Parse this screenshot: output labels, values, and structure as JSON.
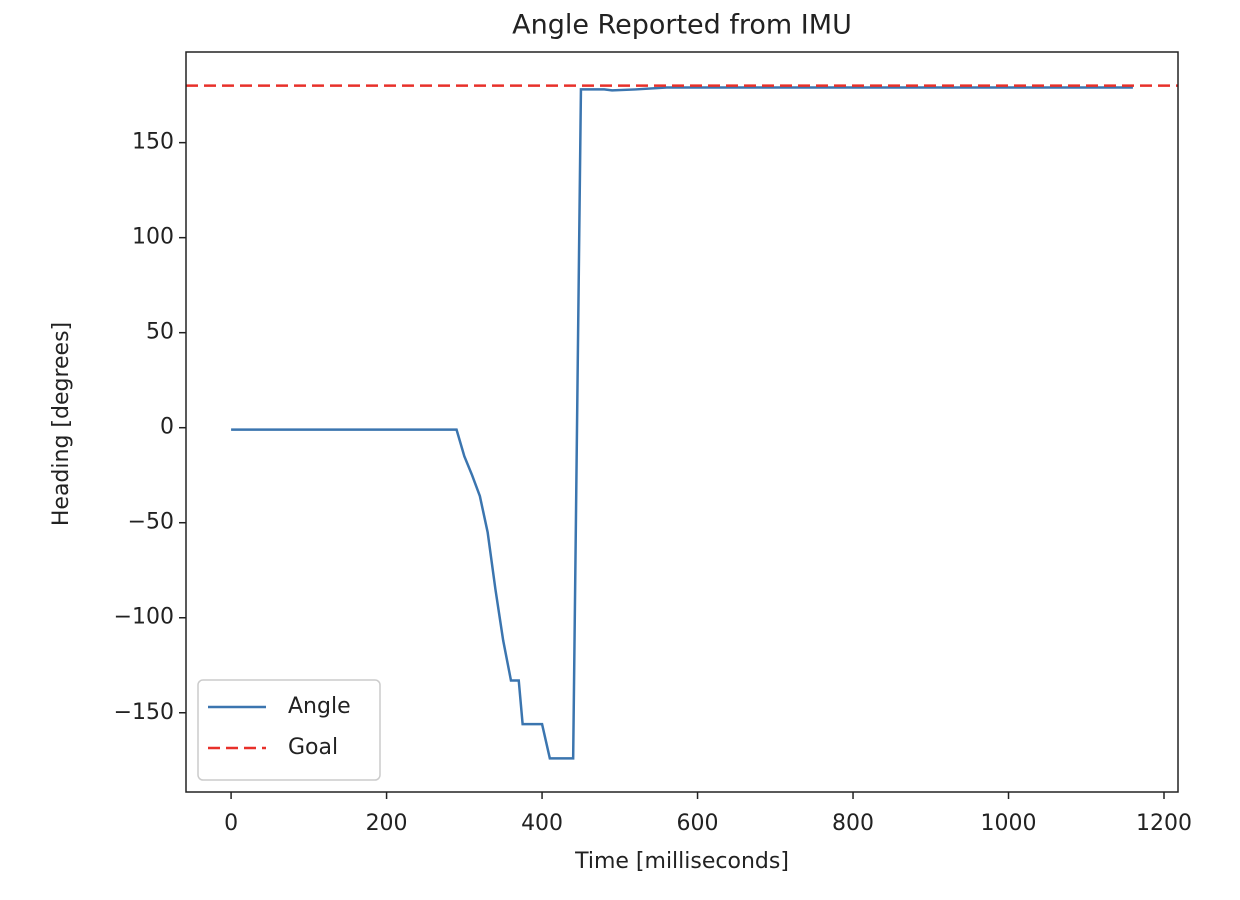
{
  "chart_data": {
    "type": "line",
    "title": "Angle Reported from IMU",
    "x_label": "Time [milliseconds]",
    "y_label": "Heading [degrees]",
    "xlim": [
      -58,
      1218
    ],
    "ylim": [
      -191.7,
      197.7
    ],
    "xticks": [
      0,
      200,
      400,
      600,
      800,
      1000,
      1200
    ],
    "yticks": [
      {
        "value": -150,
        "label": "−150"
      },
      {
        "value": -100,
        "label": "−100"
      },
      {
        "value": -50,
        "label": "−50"
      },
      0,
      50,
      100,
      150
    ],
    "legend": "lower left",
    "series": [
      {
        "name": "Angle",
        "color": "#3b75af",
        "linestyle": "solid",
        "x": [
          0,
          290,
          300,
          310,
          320,
          330,
          340,
          350,
          360,
          370,
          375,
          400,
          410,
          440,
          450,
          480,
          490,
          520,
          560,
          1160
        ],
        "values": [
          -1,
          -1,
          -15,
          -25,
          -36,
          -55,
          -85,
          -112,
          -133,
          -133,
          -156,
          -156,
          -174,
          -174,
          178,
          178,
          177.5,
          178,
          179,
          179
        ]
      },
      {
        "name": "Goal",
        "color": "#e8302a",
        "linestyle": "dashed",
        "hline": 180
      }
    ]
  }
}
